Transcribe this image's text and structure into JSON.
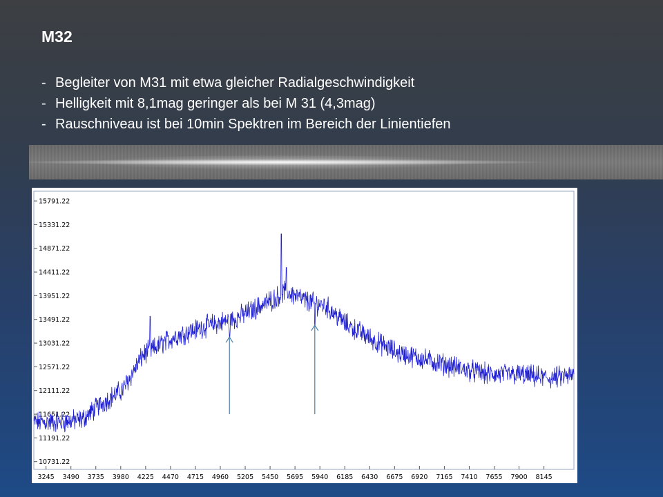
{
  "slide": {
    "title": "M32",
    "bullets": [
      "Begleiter von M31 mit etwa gleicher Radialgeschwindigkeit",
      "Helligkeit mit 8,1mag geringer als bei M 31 (4,3mag)",
      "Rauschniveau ist bei 10min Spektren im Bereich der Linientiefen"
    ]
  },
  "colors": {
    "line": "#1f1fd0",
    "arrow": "#4a7ea8",
    "frame": "#9aa4c0"
  },
  "chart_data": {
    "type": "line",
    "title": "",
    "xlabel": "",
    "ylabel": "",
    "xlim": [
      3125,
      8440
    ],
    "ylim": [
      10580,
      15980
    ],
    "x_ticks": [
      3245,
      3490,
      3735,
      3980,
      4225,
      4470,
      4715,
      4960,
      5205,
      5450,
      5695,
      5940,
      6185,
      6430,
      6675,
      6920,
      7165,
      7410,
      7655,
      7900,
      8145
    ],
    "y_ticks": [
      "15791.22",
      "15331.22",
      "14871.22",
      "14411.22",
      "13951.22",
      "13491.22",
      "13031.22",
      "12571.22",
      "12111.22",
      "11651.22",
      "11191.22",
      "10731.22"
    ],
    "series": [
      {
        "x": [
          3125,
          3400,
          3600,
          3800,
          4000,
          4200,
          4500,
          4800,
          5100,
          5300,
          5500,
          5600,
          5800,
          6000,
          6200,
          6500,
          6700,
          7000,
          7300,
          7600,
          7900,
          8200,
          8440
        ],
        "values": [
          11500,
          11500,
          11550,
          11870,
          12130,
          12800,
          13150,
          13350,
          13500,
          13700,
          13900,
          14050,
          13850,
          13750,
          13400,
          13050,
          12850,
          12700,
          12550,
          12420,
          12420,
          12350,
          12400
        ]
      }
    ],
    "annotations": [
      {
        "type": "arrow",
        "x": 5050,
        "y_from": 11651,
        "y_to": 13150
      },
      {
        "type": "arrow",
        "x": 5890,
        "y_from": 11651,
        "y_to": 13380
      }
    ]
  }
}
